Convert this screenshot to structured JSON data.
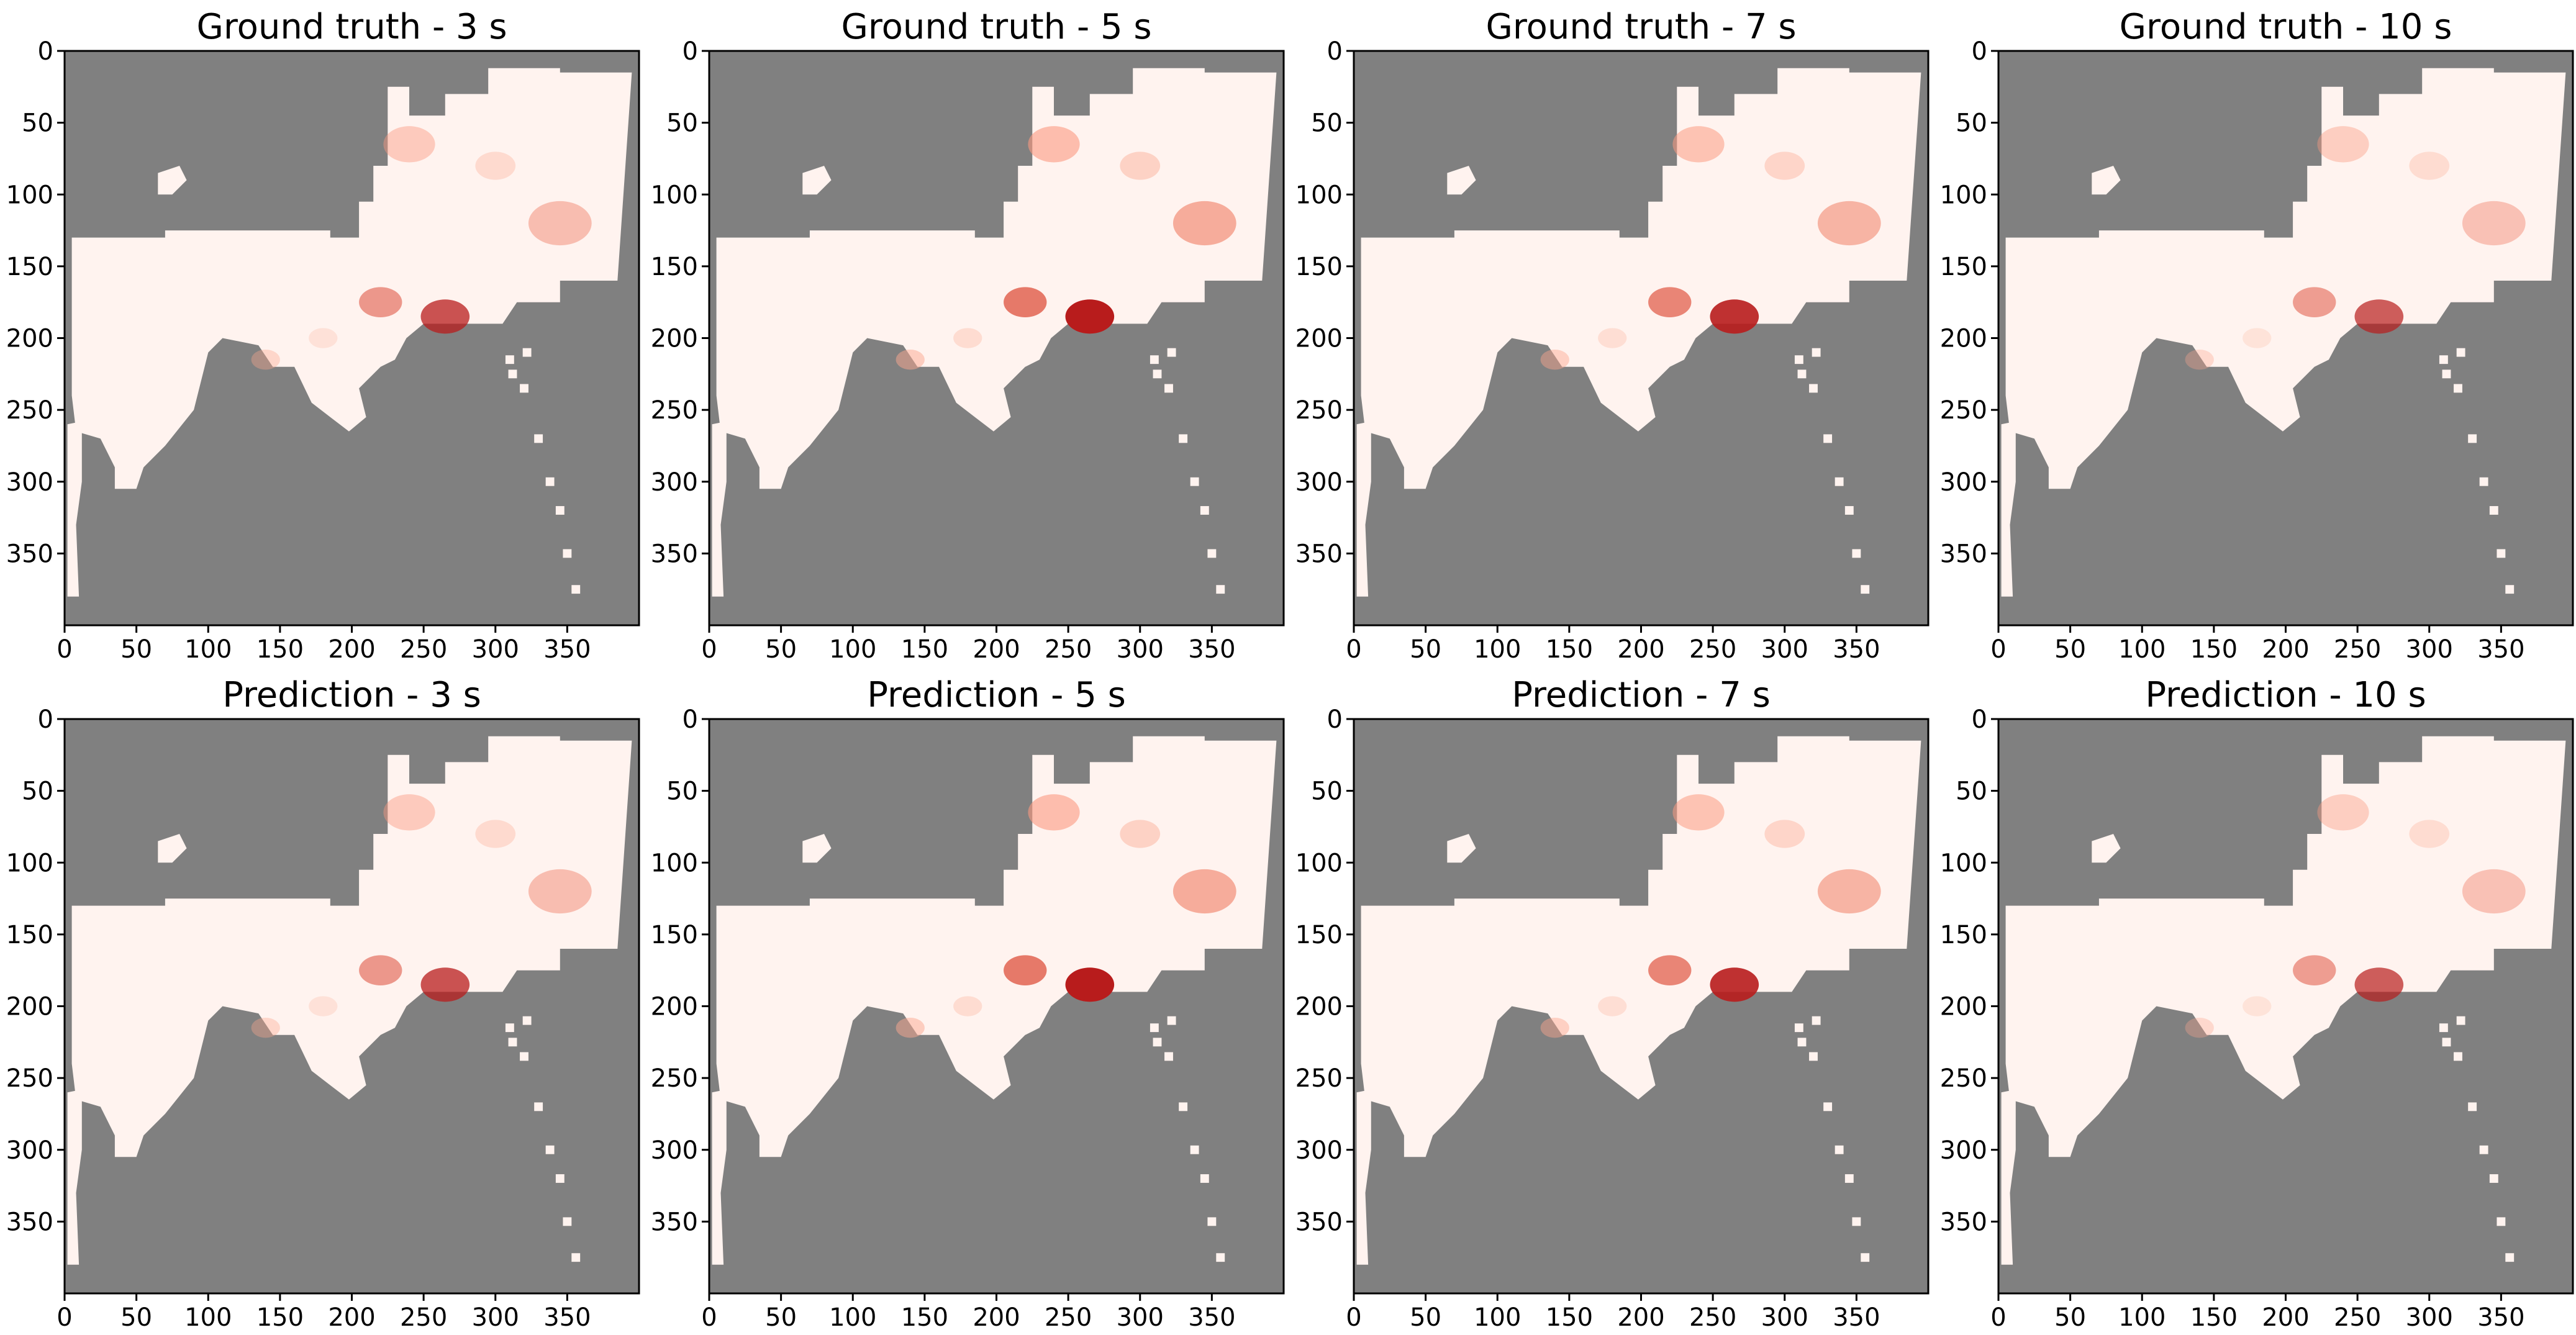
{
  "chart_data": {
    "type": "heatmap",
    "colormap": "Reds",
    "mask_color": "#808080",
    "xlim": [
      0,
      400
    ],
    "ylim": [
      400,
      0
    ],
    "xticks": [
      0,
      50,
      100,
      150,
      200,
      250,
      300,
      350
    ],
    "yticks": [
      0,
      50,
      100,
      150,
      200,
      250,
      300,
      350
    ],
    "panels": [
      {
        "title": "Ground truth - 3 s",
        "intensity": 0.75
      },
      {
        "title": "Ground truth - 5 s",
        "intensity": 1.0
      },
      {
        "title": "Ground truth - 7 s",
        "intensity": 0.9
      },
      {
        "title": "Ground truth - 10 s",
        "intensity": 0.7
      },
      {
        "title": "Prediction - 3 s",
        "intensity": 0.75
      },
      {
        "title": "Prediction - 5 s",
        "intensity": 1.0
      },
      {
        "title": "Prediction - 7 s",
        "intensity": 0.9
      },
      {
        "title": "Prediction - 10 s",
        "intensity": 0.7
      }
    ]
  }
}
